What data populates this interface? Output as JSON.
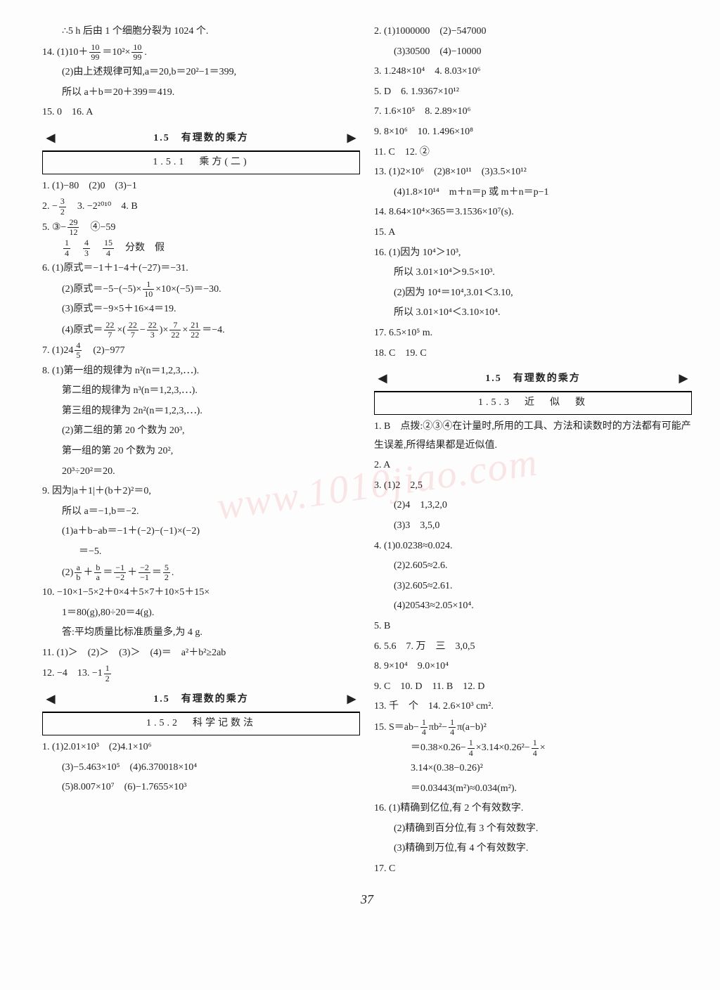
{
  "pageNumber": "37",
  "watermark": "www.1010jiao.com",
  "sections": {
    "s1_5a": {
      "title": "1.5　有理数的乘方",
      "sub": "1.5.1　乘方(二)"
    },
    "s1_5b": {
      "title": "1.5　有理数的乘方",
      "sub": "1.5.2　科学记数法"
    },
    "s1_5c": {
      "title": "1.5　有理数的乘方",
      "sub": "1.5.3　近　似　数"
    }
  },
  "left": {
    "l0": "∴5 h 后由 1 个细胞分裂为 1024 个.",
    "l1a": "14. (1)10＋",
    "l1b": "＝10²×",
    "l1c": ".",
    "l2": "(2)由上述规律可知,a＝20,b＝20²−1＝399,",
    "l3": "所以 a＋b＝20＋399＝419.",
    "l4": "15. 0　16. A",
    "q1": "1. (1)−80　(2)0　(3)−1",
    "q2a": "2. −",
    "q2b": "　3. −2²⁰¹⁰　4. B",
    "q5a": "5. ③−",
    "q5b": "　④−59",
    "q5c_parts": [
      "",
      "",
      "",
      "　分数　假"
    ],
    "q6_1": "6. (1)原式＝−1＋1−4＋(−27)＝−31.",
    "q6_2a": "(2)原式＝−5−(−5)×",
    "q6_2b": "×10×(−5)＝−30.",
    "q6_3": "(3)原式＝−9×5＋16×4＝19.",
    "q6_4a": "(4)原式＝",
    "q6_4b": "×(",
    "q6_4c": "−",
    "q6_4d": ")×",
    "q6_4e": "×",
    "q6_4f": "＝−4.",
    "q7a": "7. (1)24",
    "q7b": "　(2)−977",
    "q8_1": "8. (1)第一组的规律为 n²(n＝1,2,3,⋯).",
    "q8_2": "第二组的规律为 n³(n＝1,2,3,⋯).",
    "q8_3": "第三组的规律为 2n²(n＝1,2,3,⋯).",
    "q8_4": "(2)第二组的第 20 个数为 20³,",
    "q8_5": "第一组的第 20 个数为 20²,",
    "q8_6": "20³÷20²＝20.",
    "q9_1": "9. 因为|a＋1|＋(b＋2)²＝0,",
    "q9_2": "所以 a＝−1,b＝−2.",
    "q9_3": "(1)a＋b−ab＝−1＋(−2)−(−1)×(−2)",
    "q9_4": "＝−5.",
    "q9_5a": "(2)",
    "q9_5b": "＋",
    "q9_5c": "＝",
    "q9_5d": "＋",
    "q9_5e": "＝",
    "q9_5f": ".",
    "q10_1": "10. −10×1−5×2＋0×4＋5×7＋10×5＋15×",
    "q10_2": "1＝80(g),80÷20＝4(g).",
    "q10_3": "答:平均质量比标准质量多,为 4 g.",
    "q11": "11. (1)＞　(2)＞　(3)＞　(4)＝　a²＋b²≥2ab",
    "q12a": "12. −4　13. −1",
    "sci1": "1. (1)2.01×10³　(2)4.1×10⁶",
    "sci2": "(3)−5.463×10⁵　(4)6.370018×10⁴",
    "sci3": "(5)8.007×10⁷　(6)−1.7655×10³"
  },
  "right": {
    "r1": "2. (1)1000000　(2)−547000",
    "r2": "(3)30500　(4)−10000",
    "r3": "3. 1.248×10⁴　4. 8.03×10⁶",
    "r4": "5. D　6. 1.9367×10¹²",
    "r5": "7. 1.6×10⁵　8. 2.89×10⁶",
    "r6": "9. 8×10⁶　10. 1.496×10⁸",
    "r7": "11. C　12. ②",
    "r8": "13. (1)2×10⁶　(2)8×10¹¹　(3)3.5×10¹²",
    "r9": "(4)1.8×10¹⁴　m＋n＝p 或 m＋n＝p−1",
    "r10": "14. 8.64×10⁴×365＝3.1536×10⁷(s).",
    "r11": "15. A",
    "r12": "16. (1)因为 10⁴＞10³,",
    "r13": "所以 3.01×10⁴＞9.5×10³.",
    "r14": "(2)因为 10⁴＝10⁴,3.01＜3.10,",
    "r15": "所以 3.01×10⁴＜3.10×10⁴.",
    "r16": "17. 6.5×10⁵ m.",
    "r17": "18. C　19. C",
    "a1": "1. B　点拨:②③④在计量时,所用的工具、方法和读数时的方法都有可能产生误差,所得结果都是近似值.",
    "a2": "2. A",
    "a3": "3. (1)2　2,5",
    "a3b": "(2)4　1,3,2,0",
    "a3c": "(3)3　3,5,0",
    "a4": "4. (1)0.0238≈0.024.",
    "a4b": "(2)2.605≈2.6.",
    "a4c": "(3)2.605≈2.61.",
    "a4d": "(4)20543≈2.05×10⁴.",
    "a5": "5. B",
    "a6": "6. 5.6　7. 万　三　3,0,5",
    "a7": "8. 9×10⁴　9.0×10⁴",
    "a8": "9. C　10. D　11. B　12. D",
    "a9": "13. 千　个　14. 2.6×10³ cm².",
    "a10a": "15. S＝ab−",
    "a10b": "πb²−",
    "a10c": "π(a−b)²",
    "a11a": "＝0.38×0.26−",
    "a11b": "×3.14×0.26²−",
    "a11c": "×",
    "a12": "3.14×(0.38−0.26)²",
    "a13": "＝0.03443(m²)≈0.034(m²).",
    "a14": "16. (1)精确到亿位,有 2 个有效数字.",
    "a15": "(2)精确到百分位,有 3 个有效数字.",
    "a16": "(3)精确到万位,有 4 个有效数字.",
    "a17": "17. C"
  },
  "fracs": {
    "f10_99": {
      "n": "10",
      "d": "99"
    },
    "f3_2": {
      "n": "3",
      "d": "2"
    },
    "f29_12": {
      "n": "29",
      "d": "12"
    },
    "f1_4": {
      "n": "1",
      "d": "4"
    },
    "f4_3": {
      "n": "4",
      "d": "3"
    },
    "f15_4": {
      "n": "15",
      "d": "4"
    },
    "f1_10": {
      "n": "1",
      "d": "10"
    },
    "f22_7": {
      "n": "22",
      "d": "7"
    },
    "f22_3": {
      "n": "22",
      "d": "3"
    },
    "f7_22": {
      "n": "7",
      "d": "22"
    },
    "f21_22": {
      "n": "21",
      "d": "22"
    },
    "f4_5": {
      "n": "4",
      "d": "5"
    },
    "fa_b": {
      "n": "a",
      "d": "b"
    },
    "fb_a": {
      "n": "b",
      "d": "a"
    },
    "fm1_m2": {
      "n": "−1",
      "d": "−2"
    },
    "fm2_m1": {
      "n": "−2",
      "d": "−1"
    },
    "f5_2": {
      "n": "5",
      "d": "2"
    },
    "f1_2": {
      "n": "1",
      "d": "2"
    }
  }
}
